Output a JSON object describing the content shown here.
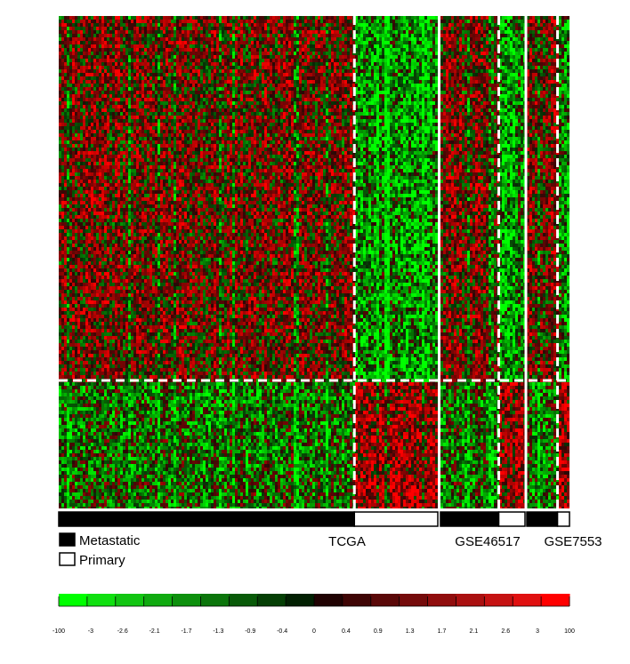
{
  "chart_data": {
    "type": "heatmap",
    "title": "",
    "xlabel": "",
    "ylabel": "",
    "datasets": [
      {
        "name": "TCGA",
        "metastatic_fraction": 0.78
      },
      {
        "name": "GSE46517",
        "metastatic_fraction": 0.69
      },
      {
        "name": "GSE7553",
        "metastatic_fraction": 0.72
      }
    ],
    "gene_cluster_split_fraction": 0.74,
    "legend": [
      {
        "label": "Metastatic",
        "color": "#000000"
      },
      {
        "label": "Primary",
        "color": "#ffffff"
      }
    ],
    "colorbar": {
      "ticks": [
        "-100",
        "-3",
        "-2.6",
        "-2.1",
        "-1.7",
        "-1.3",
        "-0.9",
        "-0.4",
        "0",
        "0.4",
        "0.9",
        "1.3",
        "1.7",
        "2.1",
        "2.6",
        "3",
        "100"
      ],
      "colors": [
        "#00ff00",
        "#10e010",
        "#12c512",
        "#10aa10",
        "#0d900d",
        "#0b750b",
        "#085a08",
        "#053f05",
        "#022002",
        "#200202",
        "#3f0505",
        "#5a0808",
        "#750b0b",
        "#900d0d",
        "#aa1010",
        "#c51212",
        "#e01010",
        "#ff0000"
      ]
    }
  }
}
